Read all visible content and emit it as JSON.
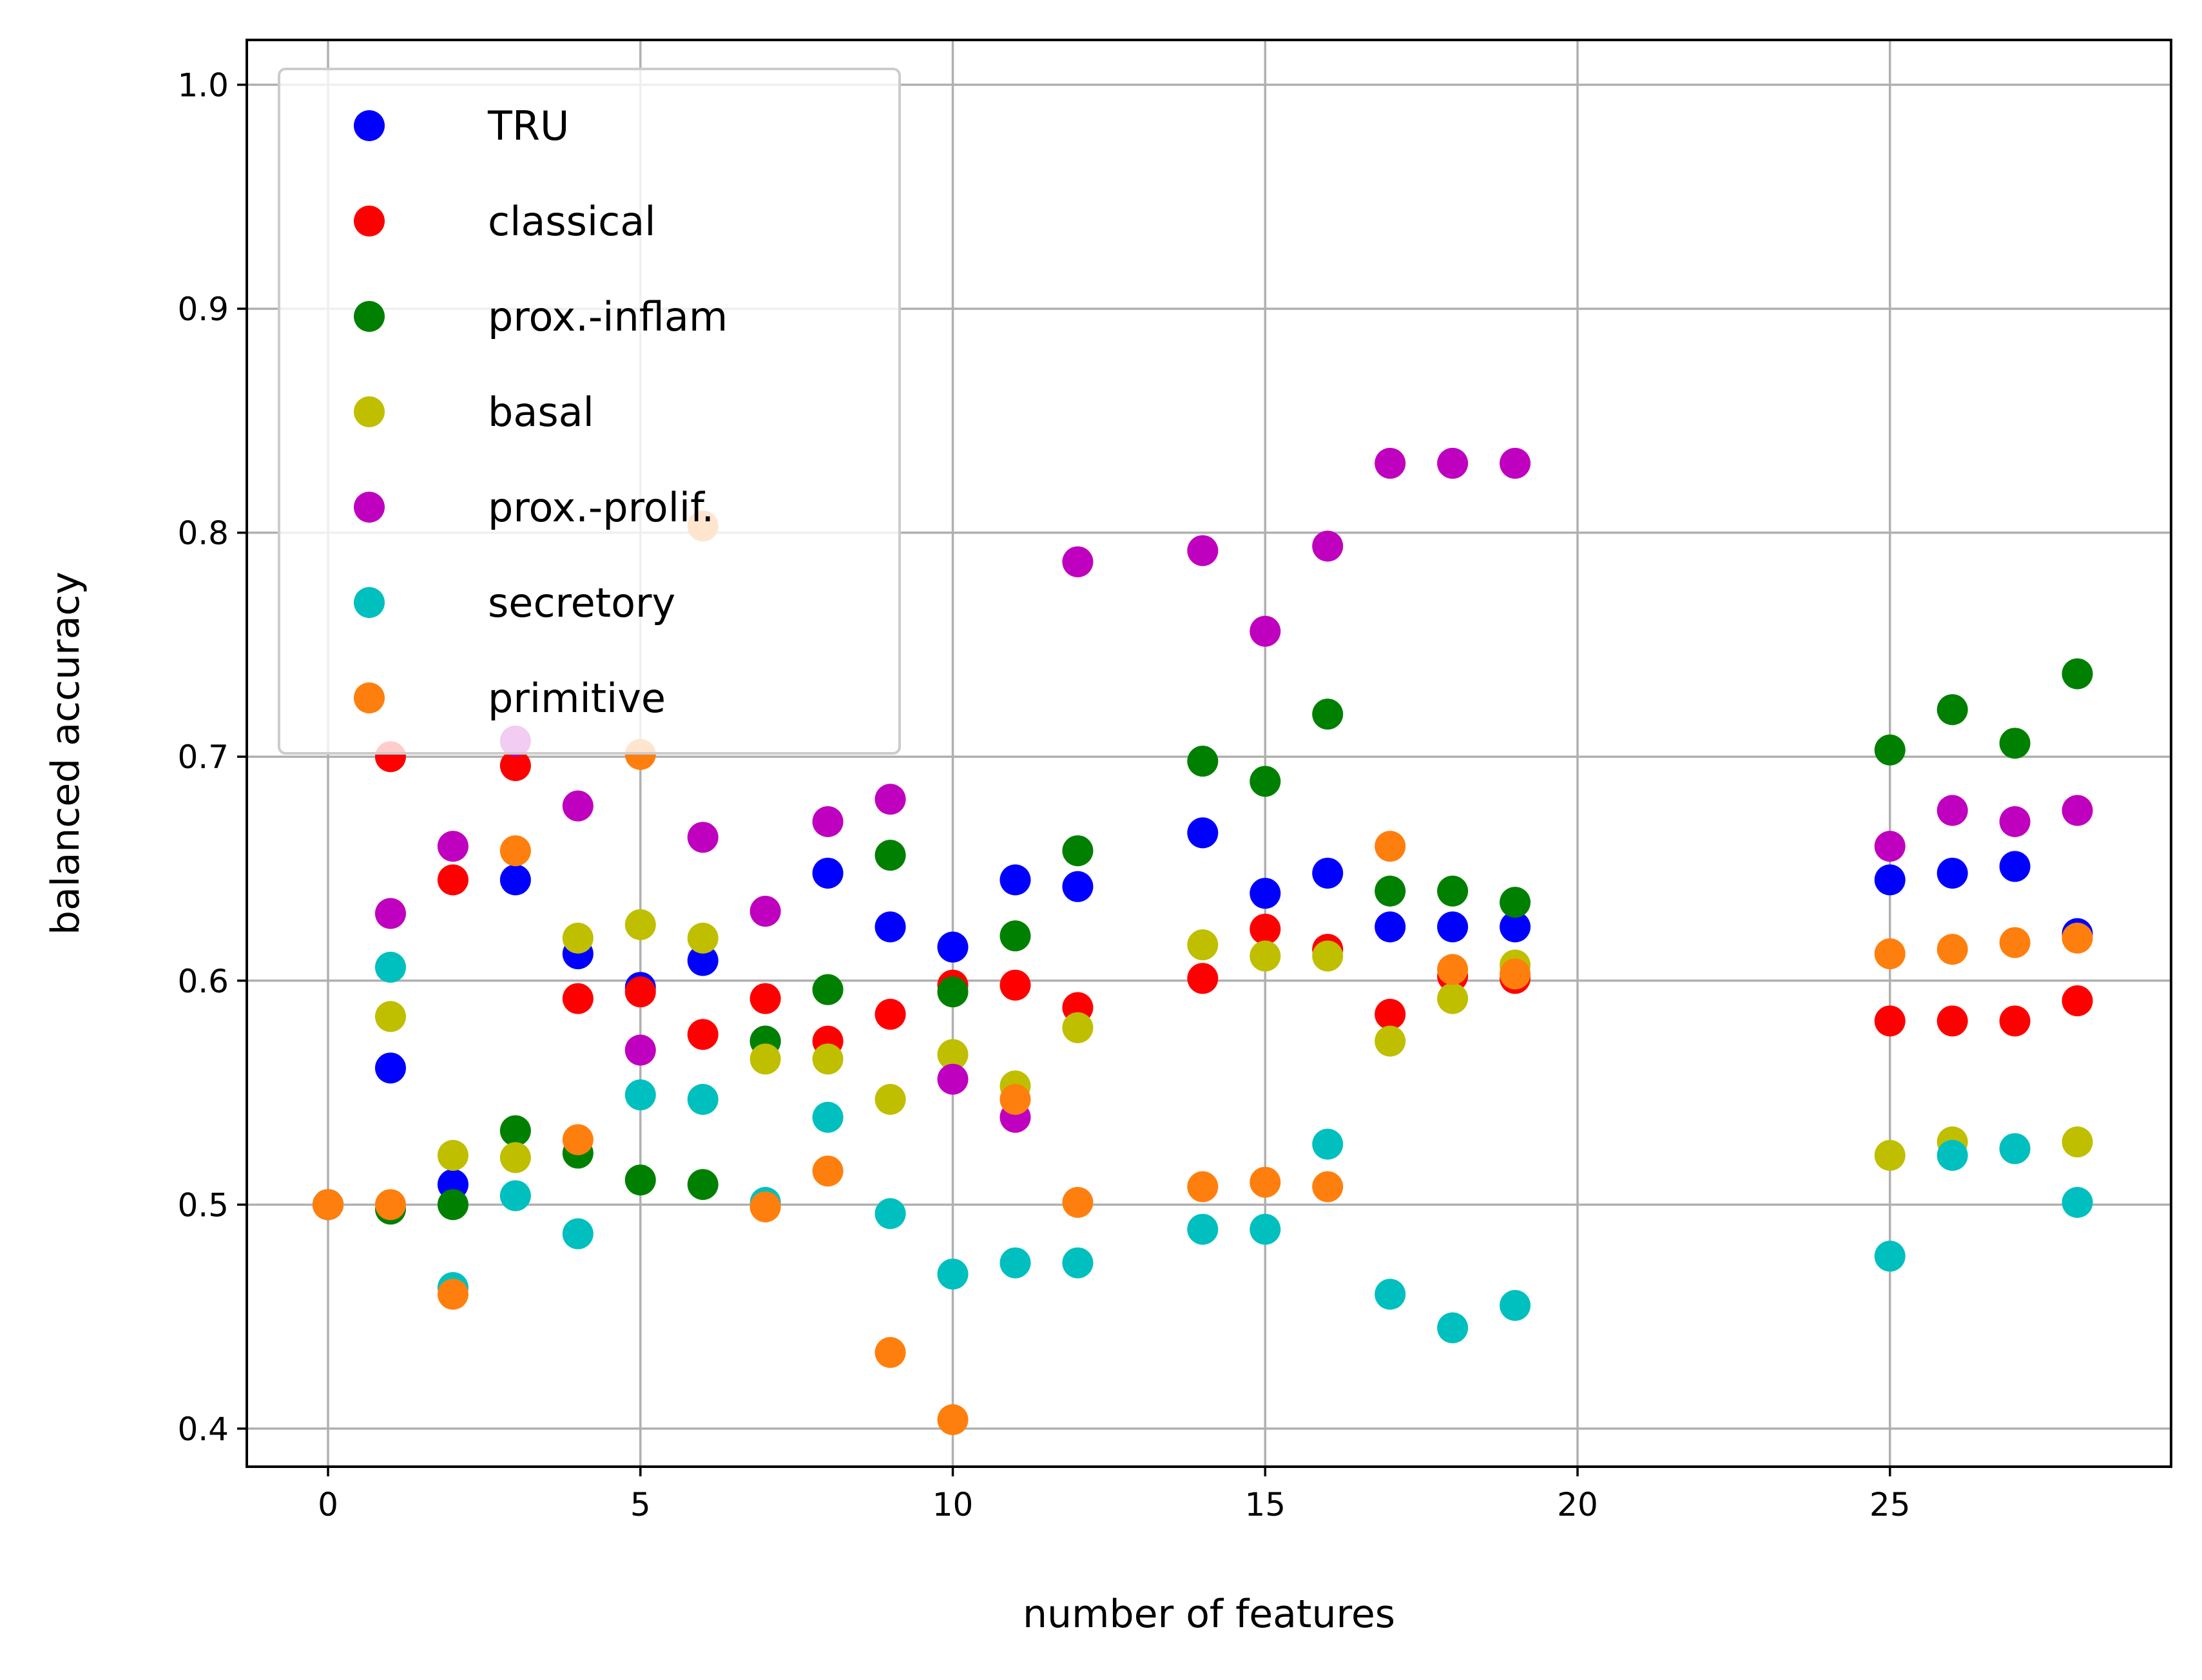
{
  "chart_data": {
    "type": "scatter",
    "title": "",
    "xlabel": "number of features",
    "ylabel": "balanced accuracy",
    "xlim": [
      -1.3,
      29.5
    ],
    "ylim": [
      0.383,
      1.02
    ],
    "xticks": [
      0,
      5,
      10,
      15,
      20,
      25
    ],
    "yticks": [
      0.4,
      0.5,
      0.6,
      0.7,
      0.8,
      0.9,
      1.0
    ],
    "xtick_labels": [
      "0",
      "5",
      "10",
      "15",
      "20",
      "25"
    ],
    "ytick_labels": [
      "0.4",
      "0.5",
      "0.6",
      "0.7",
      "0.8",
      "0.9",
      "1.0"
    ],
    "grid": true,
    "legend_position": "top-left",
    "series": [
      {
        "name": "TRU",
        "color": "#0000ff",
        "x": [
          0,
          1,
          2,
          3,
          4,
          5,
          6,
          7,
          8,
          9,
          10,
          11,
          12,
          14,
          15,
          16,
          17,
          18,
          19,
          25,
          26,
          27,
          28
        ],
        "y": [
          0.5,
          0.561,
          0.509,
          0.645,
          0.612,
          0.597,
          0.609,
          0.573,
          0.648,
          0.624,
          0.615,
          0.645,
          0.642,
          0.666,
          0.639,
          0.648,
          0.624,
          0.624,
          0.624,
          0.645,
          0.648,
          0.651,
          0.621
        ]
      },
      {
        "name": "classical",
        "color": "#ff0000",
        "x": [
          0,
          1,
          2,
          3,
          4,
          5,
          6,
          7,
          8,
          9,
          10,
          11,
          12,
          14,
          15,
          16,
          17,
          18,
          19,
          25,
          26,
          27,
          28
        ],
        "y": [
          0.5,
          0.7,
          0.645,
          0.696,
          0.592,
          0.595,
          0.576,
          0.592,
          0.573,
          0.585,
          0.598,
          0.598,
          0.588,
          0.601,
          0.623,
          0.614,
          0.585,
          0.602,
          0.601,
          0.582,
          0.582,
          0.582,
          0.591
        ]
      },
      {
        "name": "prox.-inflam",
        "color": "#008000",
        "x": [
          0,
          1,
          2,
          3,
          4,
          5,
          6,
          7,
          8,
          9,
          10,
          11,
          12,
          14,
          15,
          16,
          17,
          18,
          19,
          25,
          26,
          27,
          28
        ],
        "y": [
          0.5,
          0.498,
          0.5,
          0.533,
          0.523,
          0.511,
          0.509,
          0.573,
          0.596,
          0.656,
          0.595,
          0.62,
          0.658,
          0.698,
          0.689,
          0.719,
          0.64,
          0.64,
          0.635,
          0.703,
          0.721,
          0.706,
          0.737
        ]
      },
      {
        "name": "basal",
        "color": "#bfbf00",
        "x": [
          0,
          1,
          2,
          3,
          4,
          5,
          6,
          7,
          8,
          9,
          10,
          11,
          12,
          14,
          15,
          16,
          17,
          18,
          19,
          25,
          26,
          27,
          28
        ],
        "y": [
          0.5,
          0.584,
          0.522,
          0.521,
          0.619,
          0.625,
          0.619,
          0.565,
          0.565,
          0.547,
          0.567,
          0.553,
          0.579,
          0.616,
          0.611,
          0.611,
          0.573,
          0.592,
          0.607,
          0.522,
          0.528,
          0.525,
          0.528
        ]
      },
      {
        "name": "prox.-prolif.",
        "color": "#bf00bf",
        "x": [
          0,
          1,
          2,
          3,
          4,
          5,
          6,
          7,
          8,
          9,
          10,
          11,
          12,
          14,
          15,
          16,
          17,
          18,
          19,
          25,
          26,
          27,
          28
        ],
        "y": [
          0.5,
          0.63,
          0.66,
          0.707,
          0.678,
          0.569,
          0.664,
          0.631,
          0.671,
          0.681,
          0.556,
          0.539,
          0.787,
          0.792,
          0.756,
          0.794,
          0.831,
          0.831,
          0.831,
          0.66,
          0.676,
          0.671,
          0.676
        ]
      },
      {
        "name": "secretory",
        "color": "#00bfbf",
        "x": [
          0,
          1,
          2,
          3,
          4,
          5,
          6,
          7,
          8,
          9,
          10,
          11,
          12,
          14,
          15,
          16,
          17,
          18,
          19,
          25,
          26,
          27,
          28
        ],
        "y": [
          0.5,
          0.606,
          0.463,
          0.504,
          0.487,
          0.549,
          0.547,
          0.501,
          0.539,
          0.496,
          0.469,
          0.474,
          0.474,
          0.489,
          0.489,
          0.527,
          0.46,
          0.445,
          0.455,
          0.477,
          0.522,
          0.525,
          0.501
        ]
      },
      {
        "name": "primitive",
        "color": "#ff7f0e",
        "x": [
          0,
          1,
          2,
          3,
          4,
          5,
          6,
          7,
          8,
          9,
          10,
          11,
          12,
          14,
          15,
          16,
          17,
          18,
          19,
          25,
          26,
          27,
          28
        ],
        "y": [
          0.5,
          0.5,
          0.46,
          0.658,
          0.529,
          0.701,
          0.803,
          0.499,
          0.515,
          0.434,
          0.404,
          0.547,
          0.501,
          0.508,
          0.51,
          0.508,
          0.66,
          0.605,
          0.603,
          0.612,
          0.614,
          0.617,
          0.619
        ]
      }
    ]
  }
}
